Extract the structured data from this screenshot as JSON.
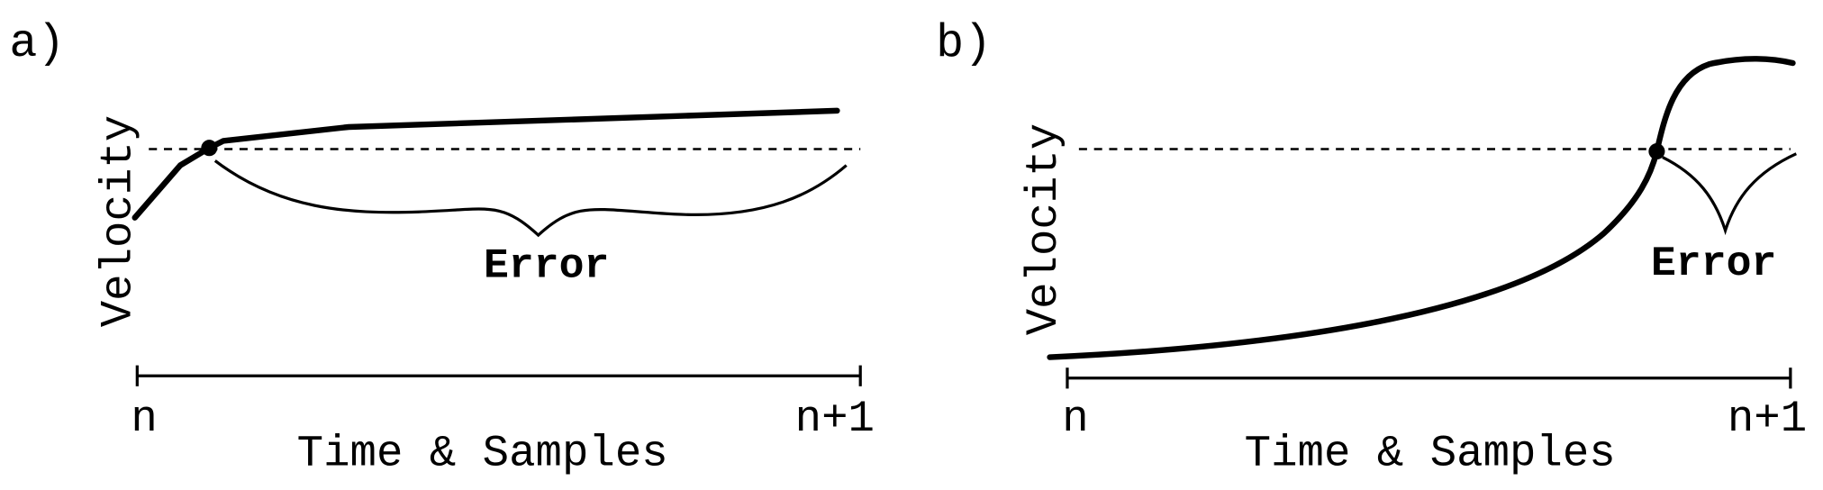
{
  "panels": [
    {
      "label": "a)",
      "y_axis_label": "Velocity",
      "annotation": "Error",
      "x_start": "n",
      "x_end": "n+1",
      "x_axis_label": "Time & Samples"
    },
    {
      "label": "b)",
      "y_axis_label": "Velocity",
      "annotation": "Error",
      "x_start": "n",
      "x_end": "n+1",
      "x_axis_label": "Time & Samples"
    }
  ]
}
